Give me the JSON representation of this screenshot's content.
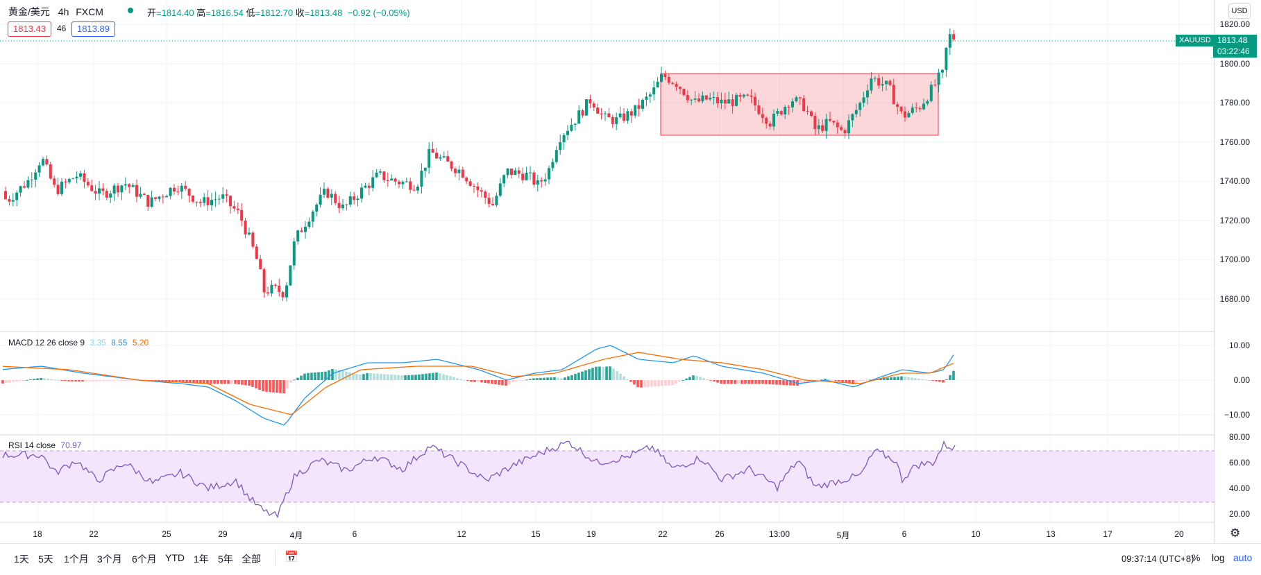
{
  "header": {
    "symbol": "黄金/美元",
    "interval": "4h",
    "exchange": "FXCM",
    "status_dot_color": "#089981",
    "open_label": "开",
    "open": "1814.40",
    "high_label": "高",
    "high": "1816.54",
    "low_label": "低",
    "low": "1812.70",
    "close_label": "收",
    "close": "1813.48",
    "change": "−0.92 (−0.05%)",
    "sell_price": "1813.43",
    "spread": "46",
    "buy_price": "1813.89"
  },
  "price_axis": {
    "currency": "USD",
    "ticks": [
      "1820.00",
      "1800.00",
      "1780.00",
      "1760.00",
      "1740.00",
      "1720.00",
      "1700.00",
      "1680.00"
    ],
    "ticker_tag": "XAUUSD",
    "last_price": "1813.48",
    "countdown": "03:22:46"
  },
  "macd": {
    "label": "MACD 12 26 close 9",
    "hist_value": "3.35",
    "macd_value": "8.55",
    "signal_value": "5.20",
    "ticks": [
      "10.00",
      "0.00",
      "−10.00"
    ],
    "colors": {
      "macd": "#2196f3",
      "signal": "#ff6d00",
      "up_strong": "#26a69a",
      "up_weak": "#b2dfdb",
      "down_strong": "#ff5252",
      "down_weak": "#ffcdd2"
    }
  },
  "rsi": {
    "label": "RSI 14 close",
    "value": "70.97",
    "ticks": [
      "80.00",
      "60.00",
      "40.00",
      "20.00"
    ],
    "colors": {
      "line": "#7e57c2",
      "band": "#f3e5fc"
    }
  },
  "time_axis": {
    "ticks": [
      "18",
      "22",
      "25",
      "29",
      "4月",
      "6",
      "12",
      "15",
      "19",
      "22",
      "26",
      "13:00",
      "5月",
      "6",
      "10",
      "13",
      "17",
      "20"
    ]
  },
  "range_box_color": "#f23645",
  "bottom_bar": {
    "ranges": [
      "1天",
      "5天",
      "1个月",
      "3个月",
      "6个月",
      "YTD",
      "1年",
      "5年",
      "全部"
    ],
    "goto_icon": "calendar-icon",
    "clock": "09:37:14 (UTC+8)",
    "percent": "%",
    "log": "log",
    "auto": "auto"
  },
  "colors": {
    "up": "#089981",
    "down": "#f23645"
  }
}
